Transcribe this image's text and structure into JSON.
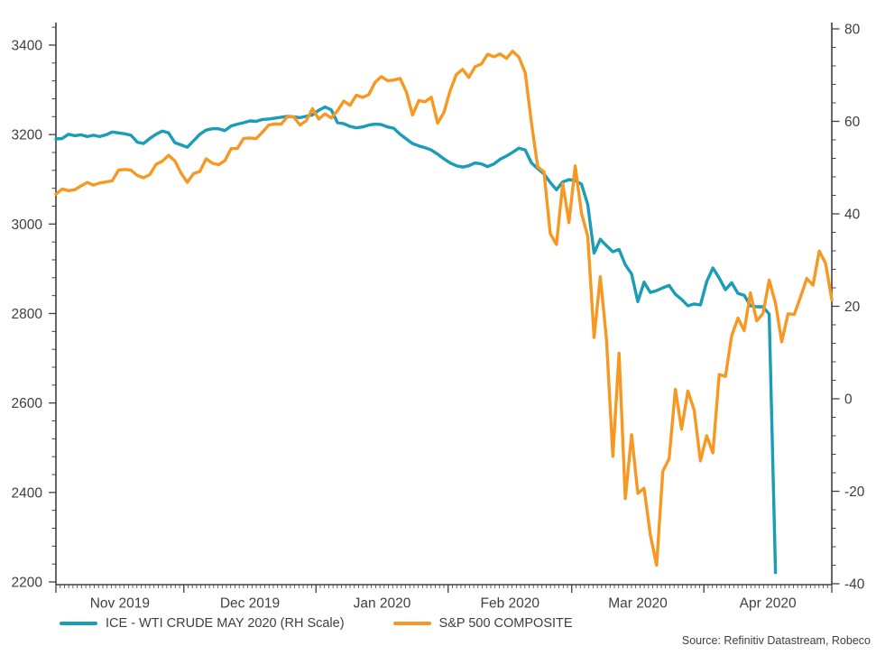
{
  "source_note": "Source: Refinitiv Datastream, Robeco",
  "colors": {
    "axis": "#404040",
    "text": "#3f3f3f",
    "wti_line": "#1a9db6",
    "spx_line": "#f79822"
  },
  "chart_data": {
    "type": "line",
    "title": "",
    "xlabel": "",
    "ylabel_left": "",
    "ylabel_right": "",
    "grid": false,
    "legend_position": "bottom-left",
    "x_axis": {
      "start_date": "2019-11-01",
      "end_date": "2020-05-01",
      "month_starts": [
        "2019-11-01",
        "2019-12-01",
        "2020-01-01",
        "2020-02-01",
        "2020-03-01",
        "2020-04-01",
        "2020-05-01"
      ],
      "month_labels": [
        "Nov 2019",
        "Dec 2019",
        "Jan 2020",
        "Feb 2020",
        "Mar 2020",
        "Apr 2020"
      ]
    },
    "left_axis": {
      "min": 2200,
      "max": 3400,
      "major_step": 200,
      "minor_step": 40,
      "ticks": [
        3400,
        3200,
        3000,
        2800,
        2600,
        2400,
        2200
      ]
    },
    "right_axis": {
      "min": -40,
      "max": 80,
      "major_step": 20,
      "minor_step": 4,
      "ticks": [
        80,
        60,
        40,
        20,
        0,
        -20,
        -40
      ]
    },
    "dates": [
      "2019-11-01",
      "2019-11-04",
      "2019-11-05",
      "2019-11-06",
      "2019-11-07",
      "2019-11-08",
      "2019-11-11",
      "2019-11-12",
      "2019-11-13",
      "2019-11-14",
      "2019-11-15",
      "2019-11-18",
      "2019-11-19",
      "2019-11-20",
      "2019-11-21",
      "2019-11-22",
      "2019-11-25",
      "2019-11-26",
      "2019-11-27",
      "2019-11-29",
      "2019-12-02",
      "2019-12-03",
      "2019-12-04",
      "2019-12-05",
      "2019-12-06",
      "2019-12-09",
      "2019-12-10",
      "2019-12-11",
      "2019-12-12",
      "2019-12-13",
      "2019-12-16",
      "2019-12-17",
      "2019-12-18",
      "2019-12-19",
      "2019-12-20",
      "2019-12-23",
      "2019-12-24",
      "2019-12-26",
      "2019-12-27",
      "2019-12-30",
      "2019-12-31",
      "2020-01-02",
      "2020-01-03",
      "2020-01-06",
      "2020-01-07",
      "2020-01-08",
      "2020-01-09",
      "2020-01-10",
      "2020-01-13",
      "2020-01-14",
      "2020-01-15",
      "2020-01-16",
      "2020-01-17",
      "2020-01-21",
      "2020-01-22",
      "2020-01-23",
      "2020-01-24",
      "2020-01-27",
      "2020-01-28",
      "2020-01-29",
      "2020-01-30",
      "2020-01-31",
      "2020-02-03",
      "2020-02-04",
      "2020-02-05",
      "2020-02-06",
      "2020-02-07",
      "2020-02-10",
      "2020-02-11",
      "2020-02-12",
      "2020-02-13",
      "2020-02-14",
      "2020-02-18",
      "2020-02-19",
      "2020-02-20",
      "2020-02-21",
      "2020-02-24",
      "2020-02-25",
      "2020-02-26",
      "2020-02-27",
      "2020-02-28",
      "2020-03-02",
      "2020-03-03",
      "2020-03-04",
      "2020-03-05",
      "2020-03-06",
      "2020-03-09",
      "2020-03-10",
      "2020-03-11",
      "2020-03-12",
      "2020-03-13",
      "2020-03-16",
      "2020-03-17",
      "2020-03-18",
      "2020-03-19",
      "2020-03-20",
      "2020-03-23",
      "2020-03-24",
      "2020-03-25",
      "2020-03-26",
      "2020-03-27",
      "2020-03-30",
      "2020-03-31",
      "2020-04-01",
      "2020-04-02",
      "2020-04-03",
      "2020-04-06",
      "2020-04-07",
      "2020-04-08",
      "2020-04-09",
      "2020-04-13",
      "2020-04-14",
      "2020-04-15",
      "2020-04-16",
      "2020-04-17",
      "2020-04-20",
      "2020-04-21",
      "2020-04-22",
      "2020-04-23",
      "2020-04-24",
      "2020-04-27",
      "2020-04-28",
      "2020-04-29",
      "2020-04-30",
      "2020-05-01"
    ],
    "series": [
      {
        "name": "ICE - WTI CRUDE MAY 2020 (RH Scale)",
        "axis": "right",
        "color": "#1a9db6",
        "values": [
          56.2,
          56.3,
          57.2,
          56.9,
          57.1,
          56.7,
          57.0,
          56.7,
          57.1,
          57.7,
          57.5,
          57.3,
          57.0,
          55.5,
          55.2,
          56.3,
          57.2,
          57.9,
          57.5,
          55.4,
          54.9,
          54.4,
          55.8,
          57.2,
          58.1,
          58.4,
          58.4,
          58.0,
          59.0,
          59.4,
          59.7,
          60.1,
          60.0,
          60.4,
          60.5,
          60.7,
          60.9,
          61.1,
          61.0,
          60.8,
          61.1,
          61.4,
          62.4,
          63.1,
          62.5,
          59.7,
          59.5,
          58.9,
          58.6,
          58.8,
          59.2,
          59.4,
          59.3,
          58.8,
          58.5,
          57.2,
          56.2,
          55.2,
          54.7,
          54.3,
          53.8,
          52.9,
          51.9,
          51.0,
          50.4,
          50.1,
          50.4,
          51.0,
          50.8,
          50.2,
          50.8,
          51.8,
          52.5,
          53.3,
          54.2,
          53.8,
          51.0,
          49.8,
          48.6,
          46.8,
          45.2,
          46.9,
          47.4,
          47.2,
          46.4,
          42.0,
          31.5,
          34.5,
          33.1,
          31.8,
          32.3,
          29.0,
          27.0,
          21.0,
          25.2,
          23.0,
          23.4,
          24.0,
          24.5,
          22.6,
          21.5,
          20.1,
          20.5,
          20.3,
          25.3,
          28.3,
          26.1,
          23.6,
          25.1,
          22.8,
          22.4,
          20.1,
          19.9,
          19.9,
          18.3,
          -37.6
        ]
      },
      {
        "name": "S&P 500 COMPOSITE",
        "axis": "left",
        "color": "#f79822",
        "values": [
          3066.9,
          3078.3,
          3074.6,
          3076.8,
          3085.2,
          3093.1,
          3087.0,
          3091.8,
          3094.0,
          3096.6,
          3120.5,
          3122.0,
          3120.2,
          3108.5,
          3103.5,
          3110.3,
          3133.6,
          3140.5,
          3153.6,
          3141.0,
          3113.9,
          3093.2,
          3112.8,
          3117.4,
          3145.9,
          3136.0,
          3132.5,
          3141.6,
          3168.6,
          3168.8,
          3191.5,
          3192.5,
          3191.1,
          3205.4,
          3221.2,
          3224.0,
          3223.4,
          3239.9,
          3240.0,
          3221.3,
          3230.8,
          3257.9,
          3234.9,
          3246.3,
          3237.2,
          3253.1,
          3274.7,
          3265.4,
          3288.1,
          3283.2,
          3289.3,
          3316.8,
          3329.6,
          3320.8,
          3321.8,
          3325.5,
          3295.5,
          3243.6,
          3276.2,
          3273.4,
          3283.7,
          3225.5,
          3248.9,
          3297.6,
          3334.7,
          3345.8,
          3327.7,
          3352.1,
          3357.8,
          3379.5,
          3373.9,
          3380.2,
          3370.3,
          3386.2,
          3373.2,
          3337.8,
          3225.9,
          3128.2,
          3116.4,
          2978.8,
          2954.2,
          3090.2,
          3003.4,
          3130.1,
          3023.9,
          2972.4,
          2746.6,
          2882.2,
          2741.4,
          2480.6,
          2711.0,
          2386.1,
          2529.2,
          2398.1,
          2409.4,
          2304.9,
          2237.4,
          2447.3,
          2475.6,
          2630.1,
          2541.5,
          2626.7,
          2584.6,
          2470.5,
          2526.9,
          2488.7,
          2663.7,
          2659.4,
          2750.0,
          2789.8,
          2761.6,
          2846.1,
          2783.4,
          2799.6,
          2874.6,
          2823.2,
          2736.6,
          2799.3,
          2797.8,
          2836.7,
          2878.5,
          2863.4,
          2939.5,
          2912.4,
          2830.7
        ]
      }
    ]
  }
}
